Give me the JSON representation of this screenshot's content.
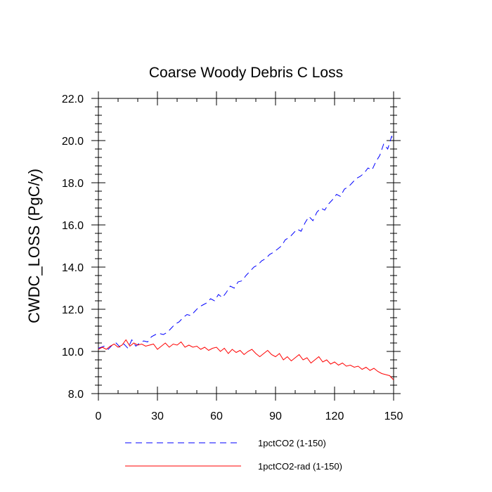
{
  "chart_data": {
    "type": "line",
    "title": "Coarse Woody Debris C Loss",
    "xlabel": "",
    "ylabel": "CWDC_LOSS  (PgC/y)",
    "xlim": [
      0,
      150
    ],
    "ylim": [
      8.0,
      22.0
    ],
    "x_ticks": [
      0,
      30,
      60,
      90,
      120,
      150
    ],
    "x_tick_labels": [
      "0",
      "30",
      "60",
      "90",
      "120",
      "150"
    ],
    "y_ticks": [
      8,
      10,
      12,
      14,
      16,
      18,
      20,
      22
    ],
    "y_tick_labels": [
      "8.0",
      "10.0",
      "12.0",
      "14.0",
      "16.0",
      "18.0",
      "20.0",
      "22.0"
    ],
    "grid": false,
    "legend_position": "bottom",
    "series": [
      {
        "name": "1pctCO2 (1-150)",
        "color": "#0000ff",
        "style": "dashed",
        "x": [
          0,
          3,
          5,
          7,
          9,
          11,
          13,
          15,
          17,
          19,
          21,
          23,
          25,
          27,
          29,
          31,
          33,
          35,
          37,
          39,
          41,
          43,
          45,
          47,
          49,
          51,
          53,
          55,
          57,
          59,
          61,
          63,
          65,
          67,
          69,
          71,
          73,
          75,
          77,
          79,
          81,
          83,
          85,
          87,
          89,
          91,
          93,
          95,
          97,
          99,
          101,
          103,
          105,
          107,
          109,
          111,
          113,
          115,
          117,
          119,
          121,
          123,
          125,
          127,
          129,
          131,
          133,
          135,
          137,
          139,
          141,
          143,
          145,
          147,
          149,
          150
        ],
        "y": [
          10.15,
          10.25,
          10.1,
          10.3,
          10.4,
          10.2,
          10.35,
          10.15,
          10.55,
          10.25,
          10.4,
          10.5,
          10.45,
          10.7,
          10.8,
          10.85,
          10.8,
          10.9,
          11.1,
          11.3,
          11.4,
          11.6,
          11.75,
          11.7,
          11.9,
          12.1,
          12.2,
          12.3,
          12.5,
          12.4,
          12.7,
          12.55,
          12.8,
          13.1,
          13.0,
          13.3,
          13.35,
          13.6,
          13.8,
          14.0,
          14.1,
          14.3,
          14.4,
          14.6,
          14.7,
          14.85,
          15.0,
          15.3,
          15.4,
          15.6,
          15.8,
          15.7,
          16.1,
          16.4,
          16.2,
          16.6,
          16.8,
          16.7,
          17.0,
          17.2,
          17.45,
          17.35,
          17.7,
          17.8,
          18.0,
          18.2,
          18.3,
          18.45,
          18.7,
          18.6,
          19.0,
          19.3,
          19.85,
          19.6,
          20.2,
          20.05
        ]
      },
      {
        "name": "1pctCO2-rad (1-150)",
        "color": "#ff0000",
        "style": "solid",
        "x": [
          0,
          2,
          4,
          6,
          8,
          10,
          12,
          14,
          16,
          18,
          20,
          22,
          24,
          26,
          28,
          30,
          32,
          34,
          36,
          38,
          40,
          42,
          44,
          46,
          48,
          50,
          52,
          54,
          56,
          58,
          60,
          62,
          64,
          66,
          68,
          70,
          72,
          74,
          76,
          78,
          80,
          82,
          84,
          86,
          88,
          90,
          92,
          94,
          96,
          98,
          100,
          102,
          104,
          106,
          108,
          110,
          112,
          114,
          116,
          118,
          120,
          122,
          124,
          126,
          128,
          130,
          132,
          134,
          136,
          138,
          140,
          142,
          144,
          146,
          148,
          150
        ],
        "y": [
          10.1,
          10.2,
          10.1,
          10.25,
          10.35,
          10.2,
          10.3,
          10.55,
          10.25,
          10.4,
          10.3,
          10.35,
          10.25,
          10.3,
          10.35,
          10.1,
          10.25,
          10.4,
          10.2,
          10.35,
          10.3,
          10.45,
          10.2,
          10.3,
          10.2,
          10.25,
          10.1,
          10.2,
          10.05,
          10.15,
          10.2,
          10.0,
          10.15,
          9.9,
          10.1,
          9.95,
          10.05,
          9.85,
          10.0,
          10.1,
          9.9,
          9.75,
          9.9,
          10.05,
          9.85,
          9.75,
          9.9,
          9.6,
          9.75,
          9.55,
          9.7,
          9.85,
          9.6,
          9.7,
          9.45,
          9.6,
          9.75,
          9.5,
          9.6,
          9.4,
          9.5,
          9.35,
          9.45,
          9.3,
          9.35,
          9.25,
          9.3,
          9.15,
          9.25,
          9.1,
          9.2,
          9.05,
          8.95,
          8.9,
          8.85,
          8.65
        ]
      }
    ]
  }
}
